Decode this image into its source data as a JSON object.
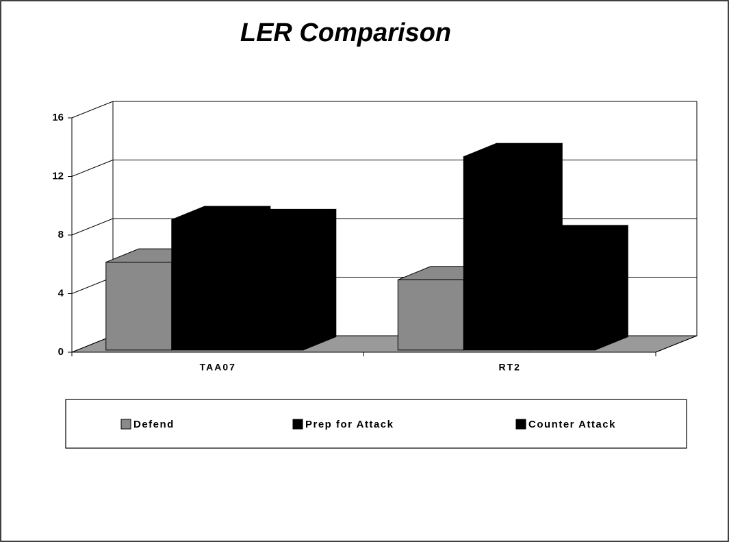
{
  "chart_data": {
    "type": "bar3d",
    "title": "LER Comparison",
    "categories": [
      "TAA07",
      "RT2"
    ],
    "series": [
      {
        "name": "Defend",
        "color": "#8a8a8a",
        "values": [
          6,
          4.8
        ]
      },
      {
        "name": "Prep for Attack",
        "color": "#000000",
        "values": [
          8.9,
          13.2
        ]
      },
      {
        "name": "Counter Attack",
        "color": "#000000",
        "values": [
          8.7,
          7.6
        ]
      }
    ],
    "ylim": [
      0,
      16
    ],
    "yticks": [
      0,
      4,
      8,
      12,
      16
    ],
    "grid": true,
    "legend": "bottom"
  }
}
